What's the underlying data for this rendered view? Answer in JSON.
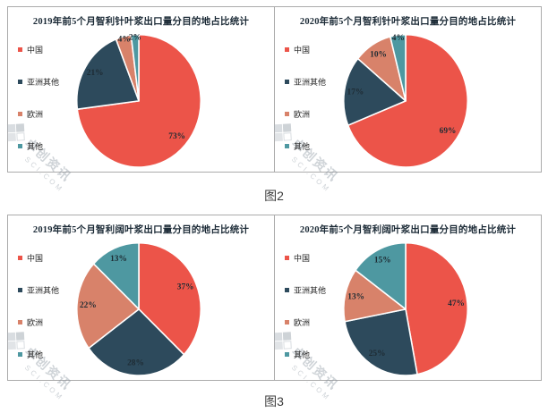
{
  "captions": {
    "fig2": "图2",
    "fig3": "图3"
  },
  "colors": {
    "series": [
      "#EC5449",
      "#2D4A5C",
      "#D8826A",
      "#4E98A1"
    ],
    "slice_label": "#1E2B33",
    "title_text": "#1B2A36",
    "panel_border": "#ABABAB",
    "caption_text": "#3F3F3F",
    "watermark": "#8D97A2"
  },
  "watermark": {
    "text": "卓创资讯",
    "subtext": "SCI.COM"
  },
  "legend_labels": [
    "中国",
    "亚洲其他",
    "欧洲",
    "其他"
  ],
  "chart_data": [
    {
      "type": "pie",
      "figure": "图2",
      "title": "2019年前5个月智利针叶浆出口量分目的地占比统计",
      "categories": [
        "中国",
        "亚洲其他",
        "欧洲",
        "其他"
      ],
      "categories_en": [
        "china",
        "asia-other",
        "europe",
        "other"
      ],
      "values": [
        73,
        21,
        4,
        2
      ],
      "unit": "%",
      "legend_position": "left",
      "start_angle_deg": 0,
      "direction": "clockwise"
    },
    {
      "type": "pie",
      "figure": "图2",
      "title": "2020年前5个月智利针叶浆出口量分目的地占比统计",
      "categories": [
        "中国",
        "亚洲其他",
        "欧洲",
        "其他"
      ],
      "categories_en": [
        "china",
        "asia-other",
        "europe",
        "other"
      ],
      "values": [
        69,
        17,
        10,
        4
      ],
      "unit": "%",
      "legend_position": "left",
      "start_angle_deg": 0,
      "direction": "clockwise"
    },
    {
      "type": "pie",
      "figure": "图3",
      "title": "2019年前5个月智利阔叶浆出口量分目的地占比统计",
      "categories": [
        "中国",
        "亚洲其他",
        "欧洲",
        "其他"
      ],
      "categories_en": [
        "china",
        "asia-other",
        "europe",
        "other"
      ],
      "values": [
        37,
        28,
        22,
        13
      ],
      "unit": "%",
      "legend_position": "left",
      "start_angle_deg": 0,
      "direction": "clockwise"
    },
    {
      "type": "pie",
      "figure": "图3",
      "title": "2020年前5个月智利阔叶浆出口量分目的地占比统计",
      "categories": [
        "中国",
        "亚洲其他",
        "欧洲",
        "其他"
      ],
      "categories_en": [
        "china",
        "asia-other",
        "europe",
        "other"
      ],
      "values": [
        47,
        25,
        13,
        15
      ],
      "unit": "%",
      "legend_position": "left",
      "start_angle_deg": 0,
      "direction": "clockwise"
    }
  ]
}
